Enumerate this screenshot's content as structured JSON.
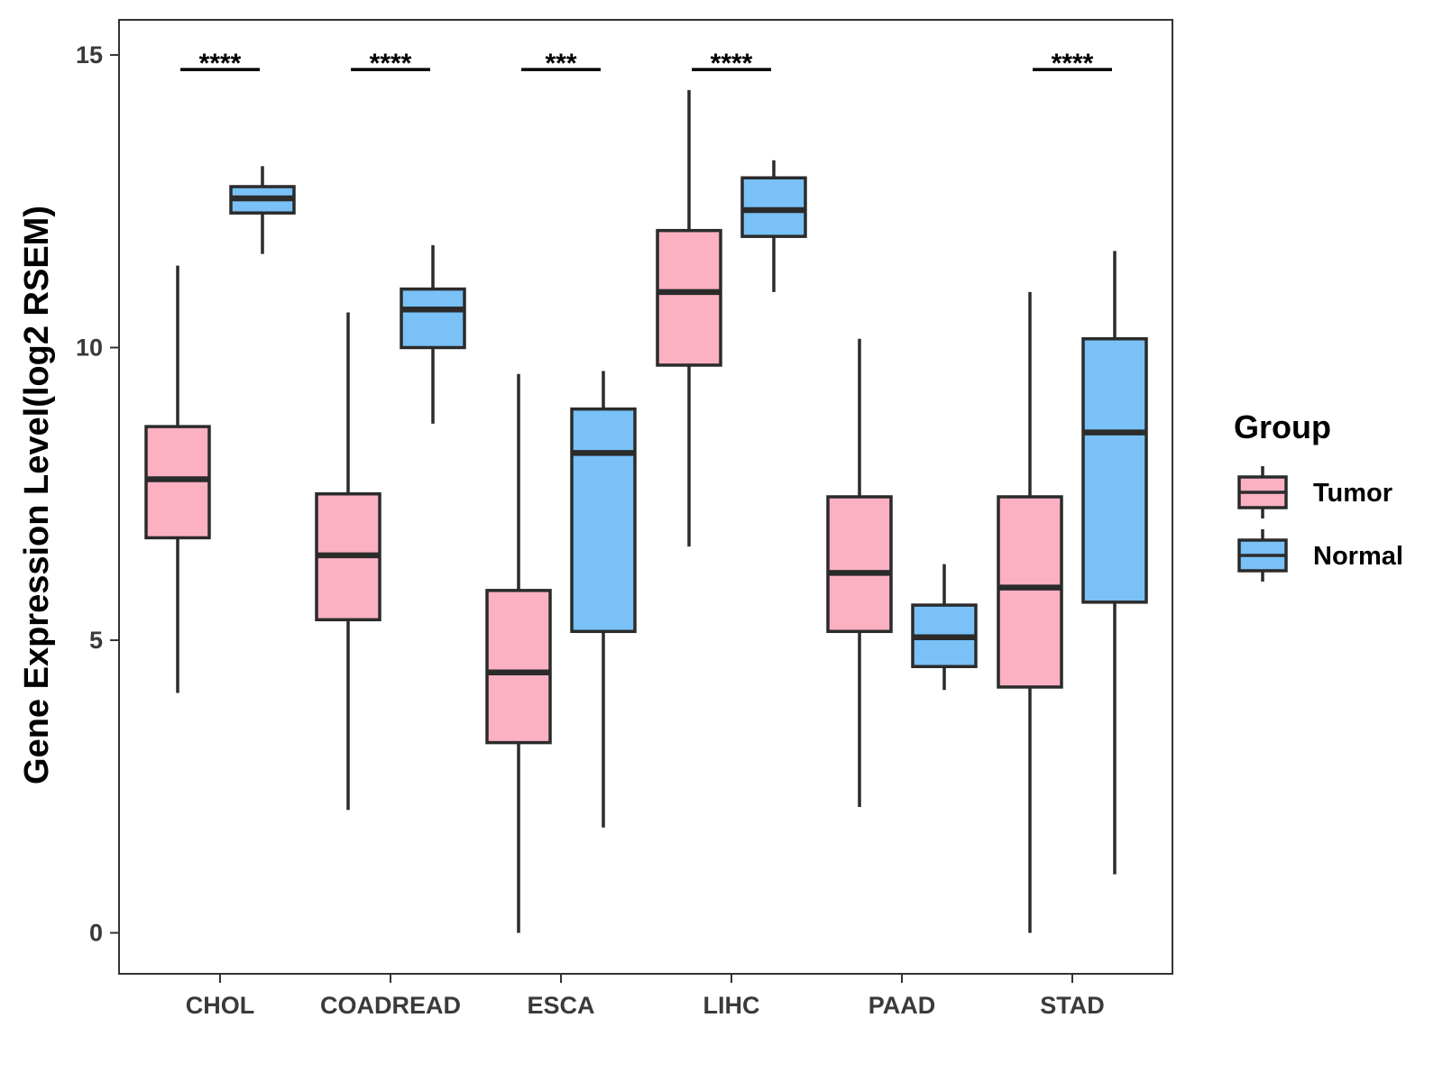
{
  "chart_data": {
    "type": "boxplot",
    "title": "",
    "xlabel": "",
    "ylabel": "Gene Expression Level(log2 RSEM)",
    "ylim": [
      -0.7,
      15.6
    ],
    "yticks": [
      0,
      5,
      10,
      15
    ],
    "grid": false,
    "categories": [
      "CHOL",
      "COADREAD",
      "ESCA",
      "LIHC",
      "PAAD",
      "STAD"
    ],
    "legend": {
      "title": "Group",
      "position": "right",
      "entries": [
        {
          "name": "Tumor",
          "color": "#fbb1c1"
        },
        {
          "name": "Normal",
          "color": "#79c1f7"
        }
      ]
    },
    "series": [
      {
        "name": "Tumor",
        "color": "#fbb1c1",
        "boxes": [
          {
            "min": 4.1,
            "q1": 6.75,
            "median": 7.75,
            "q3": 8.65,
            "max": 11.4
          },
          {
            "min": 2.1,
            "q1": 5.35,
            "median": 6.45,
            "q3": 7.5,
            "max": 10.6
          },
          {
            "min": 0.0,
            "q1": 3.25,
            "median": 4.45,
            "q3": 5.85,
            "max": 9.55
          },
          {
            "min": 6.6,
            "q1": 9.7,
            "median": 10.95,
            "q3": 12.0,
            "max": 14.4
          },
          {
            "min": 2.15,
            "q1": 5.15,
            "median": 6.15,
            "q3": 7.45,
            "max": 10.15
          },
          {
            "min": 0.0,
            "q1": 4.2,
            "median": 5.9,
            "q3": 7.45,
            "max": 10.95
          }
        ]
      },
      {
        "name": "Normal",
        "color": "#79c1f7",
        "boxes": [
          {
            "min": 11.6,
            "q1": 12.3,
            "median": 12.55,
            "q3": 12.75,
            "max": 13.1
          },
          {
            "min": 8.7,
            "q1": 10.0,
            "median": 10.65,
            "q3": 11.0,
            "max": 11.75
          },
          {
            "min": 1.8,
            "q1": 5.15,
            "median": 8.2,
            "q3": 8.95,
            "max": 9.6
          },
          {
            "min": 10.95,
            "q1": 11.9,
            "median": 12.35,
            "q3": 12.9,
            "max": 13.2
          },
          {
            "min": 4.15,
            "q1": 4.55,
            "median": 5.05,
            "q3": 5.6,
            "max": 6.3
          },
          {
            "min": 1.0,
            "q1": 5.65,
            "median": 8.55,
            "q3": 10.15,
            "max": 11.65
          }
        ]
      }
    ],
    "significance": [
      {
        "category": "CHOL",
        "label": "****"
      },
      {
        "category": "COADREAD",
        "label": "****"
      },
      {
        "category": "ESCA",
        "label": "***"
      },
      {
        "category": "LIHC",
        "label": "****"
      },
      {
        "category": "PAAD",
        "label": ""
      },
      {
        "category": "STAD",
        "label": "****"
      }
    ],
    "significance_level": 14.75
  }
}
